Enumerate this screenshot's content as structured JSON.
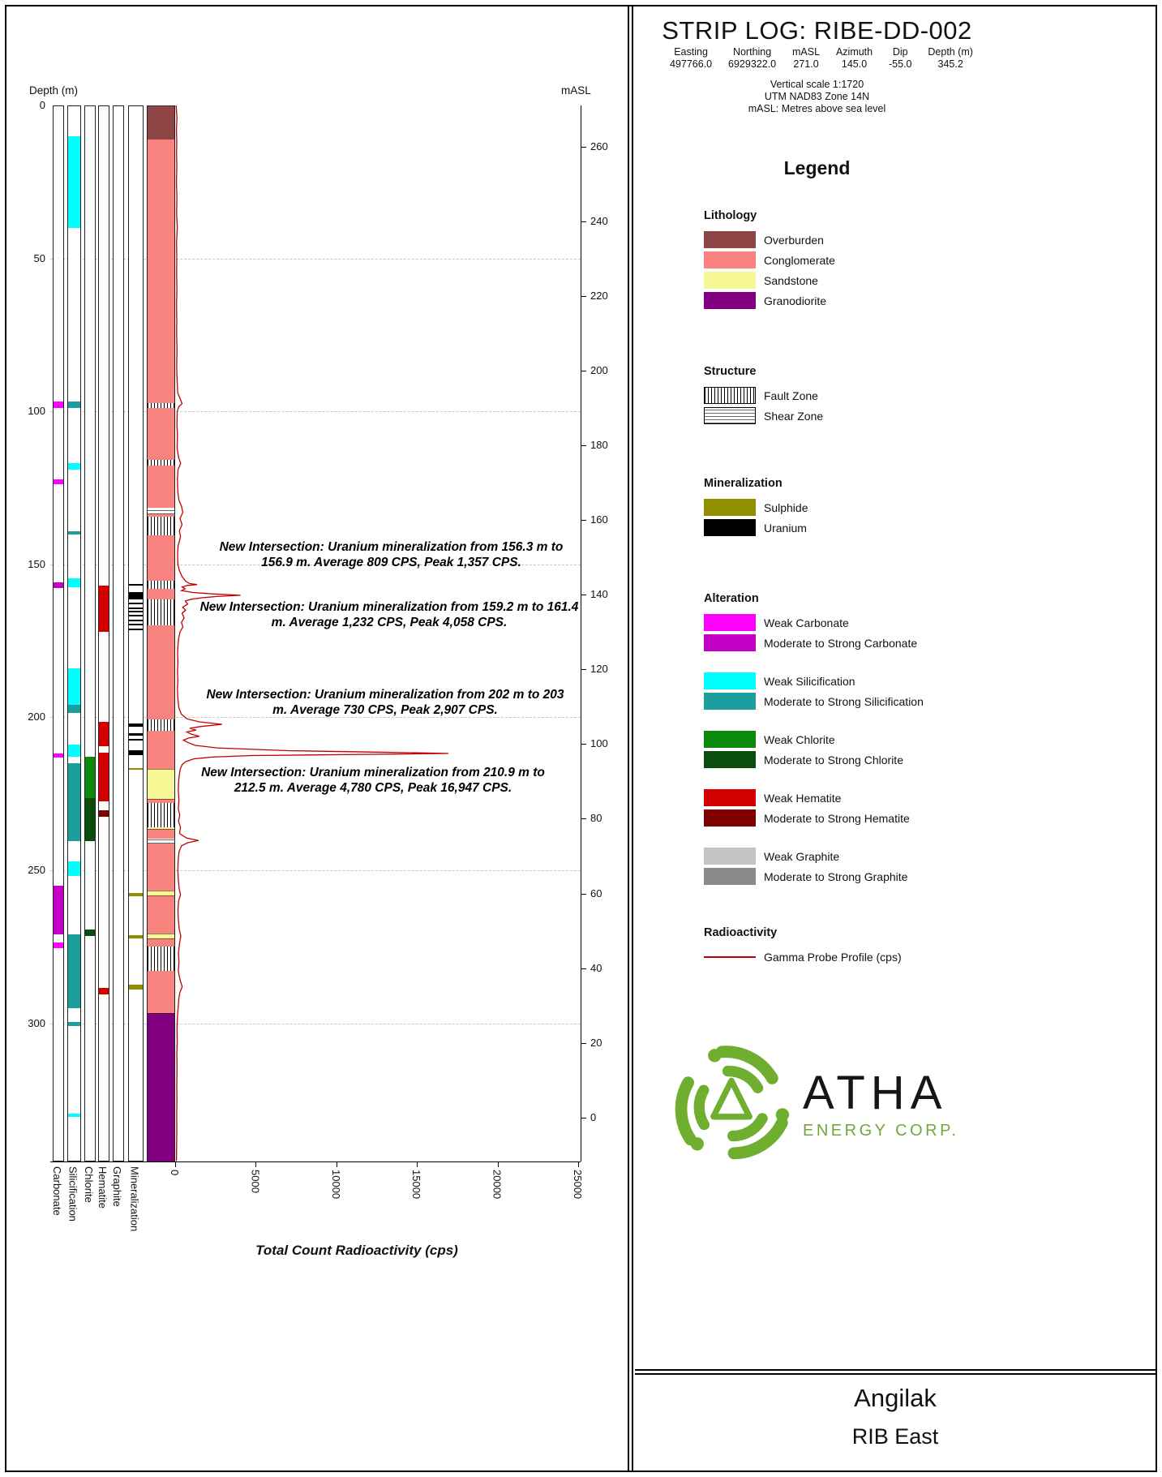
{
  "page": {
    "title": "STRIP LOG: RIBE-DD-002",
    "collar": {
      "labels": [
        "Easting",
        "Northing",
        "mASL",
        "Azimuth",
        "Dip",
        "Depth (m)"
      ],
      "values": [
        "497766.0",
        "6929322.0",
        "271.0",
        "145.0",
        "-55.0",
        "345.2"
      ]
    },
    "notes": [
      "Vertical scale 1:1720",
      "UTM NAD83 Zone 14N",
      "mASL: Metres above sea level"
    ],
    "footer": {
      "project": "Angilak",
      "area": "RIB East"
    },
    "logo": {
      "word": "ATHA",
      "subtitle": "ENERGY CORP."
    }
  },
  "colors": {
    "overburden": "#8d4545",
    "conglomerate": "#f9837e",
    "sandstone": "#f6f695",
    "granodiorite": "#800080",
    "sulphide": "#8f8f00",
    "uranium": "#000000",
    "carbonate_weak": "#ff00ff",
    "carbonate_strong": "#c400c4",
    "silicification_weak": "#00ffff",
    "silicification_strong": "#1a9e9e",
    "chlorite_weak": "#0c8a0c",
    "chlorite_strong": "#0b4d0b",
    "hematite_weak": "#d40000",
    "hematite_strong": "#7e0000",
    "graphite_weak": "#c4c4c4",
    "graphite_strong": "#8a8a8a",
    "gamma": "#c00000"
  },
  "legend": {
    "title": "Legend",
    "sections": [
      {
        "heading": "Lithology",
        "items": [
          {
            "label": "Overburden",
            "swatch": "fill",
            "color_key": "overburden"
          },
          {
            "label": "Conglomerate",
            "swatch": "fill",
            "color_key": "conglomerate"
          },
          {
            "label": "Sandstone",
            "swatch": "fill",
            "color_key": "sandstone"
          },
          {
            "label": "Granodiorite",
            "swatch": "fill",
            "color_key": "granodiorite"
          }
        ]
      },
      {
        "heading": "Structure",
        "items": [
          {
            "label": "Fault Zone",
            "swatch": "fault"
          },
          {
            "label": "Shear Zone",
            "swatch": "shear"
          }
        ]
      },
      {
        "heading": "Mineralization",
        "items": [
          {
            "label": "Sulphide",
            "swatch": "fill",
            "color_key": "sulphide"
          },
          {
            "label": "Uranium",
            "swatch": "fill",
            "color_key": "uranium"
          }
        ]
      },
      {
        "heading": "Alteration",
        "items": [
          {
            "label": "Weak Carbonate",
            "swatch": "fill",
            "color_key": "carbonate_weak"
          },
          {
            "label": "Moderate to Strong Carbonate",
            "swatch": "fill",
            "color_key": "carbonate_strong"
          },
          {
            "label": "Weak Silicification",
            "swatch": "fill",
            "color_key": "silicification_weak",
            "gap_before": true
          },
          {
            "label": "Moderate to Strong Silicification",
            "swatch": "fill",
            "color_key": "silicification_strong"
          },
          {
            "label": "Weak Chlorite",
            "swatch": "fill",
            "color_key": "chlorite_weak",
            "gap_before": true
          },
          {
            "label": "Moderate to Strong Chlorite",
            "swatch": "fill",
            "color_key": "chlorite_strong"
          },
          {
            "label": "Weak Hematite",
            "swatch": "fill",
            "color_key": "hematite_weak",
            "gap_before": true
          },
          {
            "label": "Moderate to Strong Hematite",
            "swatch": "fill",
            "color_key": "hematite_strong"
          },
          {
            "label": "Weak Graphite",
            "swatch": "fill",
            "color_key": "graphite_weak",
            "gap_before": true
          },
          {
            "label": "Moderate to Strong Graphite",
            "swatch": "fill",
            "color_key": "graphite_strong"
          }
        ]
      },
      {
        "heading": "Radioactivity",
        "items": [
          {
            "label": "Gamma Probe Profile (cps)",
            "swatch": "line",
            "color_key": "gamma"
          }
        ]
      }
    ]
  },
  "log": {
    "depth_axis": {
      "label": "Depth (m)",
      "ticks": [
        0,
        50,
        100,
        150,
        200,
        250,
        300
      ],
      "max_depth": 345.2
    },
    "masl_axis": {
      "label": "mASL",
      "ticks": [
        260,
        240,
        220,
        200,
        180,
        160,
        140,
        120,
        100,
        80,
        60,
        40,
        20,
        0
      ],
      "collar_masl": 271.0,
      "dip": -55.0
    },
    "gamma_axis": {
      "title": "Total Count Radioactivity (cps)",
      "ticks": [
        0,
        5000,
        10000,
        15000,
        20000,
        25000
      ],
      "max": 25000
    },
    "columns": [
      "Carbonate",
      "Silicification",
      "Chlorite",
      "Hematite",
      "Graphite",
      "Mineralization"
    ],
    "lithology": [
      {
        "from": 0,
        "to": 11,
        "unit": "overburden"
      },
      {
        "from": 11,
        "to": 216.8,
        "unit": "conglomerate"
      },
      {
        "from": 216.8,
        "to": 226.6,
        "unit": "sandstone"
      },
      {
        "from": 226.6,
        "to": 230.5,
        "unit": "conglomerate"
      },
      {
        "from": 230.5,
        "to": 236.4,
        "unit": "sandstone"
      },
      {
        "from": 236.4,
        "to": 256.6,
        "unit": "conglomerate"
      },
      {
        "from": 256.6,
        "to": 258.2,
        "unit": "sandstone"
      },
      {
        "from": 258.2,
        "to": 270.6,
        "unit": "conglomerate"
      },
      {
        "from": 270.6,
        "to": 272.2,
        "unit": "sandstone"
      },
      {
        "from": 272.2,
        "to": 296.6,
        "unit": "conglomerate"
      },
      {
        "from": 296.6,
        "to": 345.2,
        "unit": "granodiorite"
      }
    ],
    "structure": [
      {
        "from": 97.3,
        "to": 99,
        "type": "fault"
      },
      {
        "from": 115.8,
        "to": 117.8,
        "type": "fault"
      },
      {
        "from": 131.5,
        "to": 133.5,
        "type": "shear"
      },
      {
        "from": 134.5,
        "to": 140.5,
        "type": "fault"
      },
      {
        "from": 155.3,
        "to": 158,
        "type": "fault"
      },
      {
        "from": 161.5,
        "to": 170,
        "type": "fault"
      },
      {
        "from": 200.8,
        "to": 204.5,
        "type": "fault"
      },
      {
        "from": 228,
        "to": 236,
        "type": "fault"
      },
      {
        "from": 239.8,
        "to": 241.2,
        "type": "shear"
      },
      {
        "from": 275,
        "to": 283,
        "type": "fault"
      }
    ],
    "alteration": {
      "carbonate": [
        {
          "from": 96.8,
          "to": 98.8,
          "grade": "weak"
        },
        {
          "from": 122.3,
          "to": 123.8,
          "grade": "weak"
        },
        {
          "from": 155.8,
          "to": 157.8,
          "grade": "strong"
        },
        {
          "from": 211.8,
          "to": 213.2,
          "grade": "weak"
        },
        {
          "from": 255,
          "to": 271,
          "grade": "strong"
        },
        {
          "from": 273.5,
          "to": 275.5,
          "grade": "weak"
        }
      ],
      "silicification": [
        {
          "from": 10,
          "to": 40,
          "grade": "weak"
        },
        {
          "from": 96.8,
          "to": 98.8,
          "grade": "strong"
        },
        {
          "from": 117,
          "to": 119,
          "grade": "weak"
        },
        {
          "from": 139.3,
          "to": 140.3,
          "grade": "strong"
        },
        {
          "from": 154.5,
          "to": 157.5,
          "grade": "weak"
        },
        {
          "from": 184,
          "to": 196,
          "grade": "weak"
        },
        {
          "from": 196,
          "to": 198.5,
          "grade": "strong"
        },
        {
          "from": 208.8,
          "to": 213,
          "grade": "weak"
        },
        {
          "from": 215,
          "to": 240.5,
          "grade": "strong"
        },
        {
          "from": 247,
          "to": 252,
          "grade": "weak"
        },
        {
          "from": 271,
          "to": 295,
          "grade": "strong"
        },
        {
          "from": 299.5,
          "to": 300.8,
          "grade": "strong"
        },
        {
          "from": 329.5,
          "to": 330.5,
          "grade": "weak"
        }
      ],
      "chlorite": [
        {
          "from": 213,
          "to": 226.5,
          "grade": "weak"
        },
        {
          "from": 226.5,
          "to": 240.5,
          "grade": "strong"
        },
        {
          "from": 269.5,
          "to": 271.5,
          "grade": "strong"
        }
      ],
      "hematite": [
        {
          "from": 157,
          "to": 172,
          "grade": "weak"
        },
        {
          "from": 201.5,
          "to": 209.5,
          "grade": "weak"
        },
        {
          "from": 211.5,
          "to": 227.5,
          "grade": "weak"
        },
        {
          "from": 230.5,
          "to": 232.5,
          "grade": "strong"
        },
        {
          "from": 288.5,
          "to": 290.5,
          "grade": "weak"
        }
      ],
      "graphite": []
    },
    "mineralization": [
      {
        "from": 156.3,
        "to": 156.9,
        "type": "uranium"
      },
      {
        "from": 159.2,
        "to": 161.4,
        "type": "uranium"
      },
      {
        "from": 162.5,
        "to": 163,
        "type": "uranium"
      },
      {
        "from": 164,
        "to": 164.4,
        "type": "uranium"
      },
      {
        "from": 165.2,
        "to": 165.6,
        "type": "uranium"
      },
      {
        "from": 166.5,
        "to": 167,
        "type": "uranium"
      },
      {
        "from": 168,
        "to": 168.4,
        "type": "uranium"
      },
      {
        "from": 169.5,
        "to": 170,
        "type": "uranium"
      },
      {
        "from": 171,
        "to": 171.4,
        "type": "uranium"
      },
      {
        "from": 202,
        "to": 203,
        "type": "uranium"
      },
      {
        "from": 205.3,
        "to": 206,
        "type": "uranium"
      },
      {
        "from": 207,
        "to": 207.5,
        "type": "uranium"
      },
      {
        "from": 210.9,
        "to": 212.5,
        "type": "uranium"
      },
      {
        "from": 216.5,
        "to": 217.2,
        "type": "sulphide"
      },
      {
        "from": 257.5,
        "to": 258.5,
        "type": "sulphide"
      },
      {
        "from": 271.3,
        "to": 272.2,
        "type": "sulphide"
      },
      {
        "from": 287.5,
        "to": 289,
        "type": "sulphide"
      }
    ],
    "gamma_profile": [
      [
        0,
        60
      ],
      [
        4,
        110
      ],
      [
        8,
        80
      ],
      [
        12,
        100
      ],
      [
        16,
        85
      ],
      [
        20,
        105
      ],
      [
        25,
        80
      ],
      [
        30,
        110
      ],
      [
        35,
        90
      ],
      [
        40,
        130
      ],
      [
        45,
        85
      ],
      [
        50,
        100
      ],
      [
        55,
        90
      ],
      [
        60,
        110
      ],
      [
        65,
        85
      ],
      [
        70,
        100
      ],
      [
        75,
        90
      ],
      [
        80,
        115
      ],
      [
        85,
        95
      ],
      [
        90,
        120
      ],
      [
        94,
        160
      ],
      [
        96,
        320
      ],
      [
        97.5,
        430
      ],
      [
        98.5,
        220
      ],
      [
        100,
        130
      ],
      [
        104,
        110
      ],
      [
        108,
        140
      ],
      [
        112,
        120
      ],
      [
        115,
        210
      ],
      [
        117,
        340
      ],
      [
        119,
        180
      ],
      [
        122,
        140
      ],
      [
        126,
        160
      ],
      [
        129,
        230
      ],
      [
        131,
        390
      ],
      [
        133,
        480
      ],
      [
        135,
        300
      ],
      [
        137,
        430
      ],
      [
        139,
        260
      ],
      [
        141,
        330
      ],
      [
        144,
        180
      ],
      [
        147,
        150
      ],
      [
        150,
        170
      ],
      [
        152,
        260
      ],
      [
        154,
        430
      ],
      [
        155.5,
        650
      ],
      [
        156.3,
        900
      ],
      [
        156.6,
        1357
      ],
      [
        156.9,
        760
      ],
      [
        157.4,
        430
      ],
      [
        158,
        620
      ],
      [
        158.6,
        390
      ],
      [
        159.2,
        1100
      ],
      [
        159.7,
        2400
      ],
      [
        160.1,
        4058
      ],
      [
        160.5,
        2600
      ],
      [
        160.9,
        1700
      ],
      [
        161.4,
        1000
      ],
      [
        162,
        630
      ],
      [
        163,
        780
      ],
      [
        164,
        470
      ],
      [
        165,
        650
      ],
      [
        166,
        430
      ],
      [
        167.5,
        560
      ],
      [
        169,
        390
      ],
      [
        170.5,
        480
      ],
      [
        172,
        310
      ],
      [
        174,
        220
      ],
      [
        176,
        180
      ],
      [
        179,
        150
      ],
      [
        182,
        170
      ],
      [
        185,
        145
      ],
      [
        188,
        165
      ],
      [
        191,
        140
      ],
      [
        194,
        170
      ],
      [
        197,
        230
      ],
      [
        199,
        390
      ],
      [
        200.5,
        720
      ],
      [
        201.5,
        1500
      ],
      [
        202.3,
        2907
      ],
      [
        203,
        1600
      ],
      [
        203.6,
        900
      ],
      [
        204.2,
        1300
      ],
      [
        204.8,
        720
      ],
      [
        205.5,
        1000
      ],
      [
        206.2,
        1500
      ],
      [
        206.8,
        820
      ],
      [
        207.5,
        520
      ],
      [
        208.3,
        820
      ],
      [
        209.2,
        1250
      ],
      [
        210,
        2600
      ],
      [
        210.9,
        7000
      ],
      [
        211.4,
        12500
      ],
      [
        211.8,
        16947
      ],
      [
        212.2,
        10500
      ],
      [
        212.5,
        4780
      ],
      [
        213,
        2300
      ],
      [
        213.6,
        1150
      ],
      [
        214.5,
        660
      ],
      [
        215.5,
        430
      ],
      [
        217,
        310
      ],
      [
        219,
        250
      ],
      [
        221,
        215
      ],
      [
        224,
        195
      ],
      [
        227,
        235
      ],
      [
        230,
        195
      ],
      [
        232,
        285
      ],
      [
        234,
        205
      ],
      [
        236,
        330
      ],
      [
        238,
        270
      ],
      [
        239.5,
        720
      ],
      [
        240.3,
        1450
      ],
      [
        241,
        780
      ],
      [
        242,
        390
      ],
      [
        244,
        235
      ],
      [
        247,
        185
      ],
      [
        250,
        165
      ],
      [
        253,
        195
      ],
      [
        256,
        245
      ],
      [
        258,
        330
      ],
      [
        260,
        215
      ],
      [
        263,
        175
      ],
      [
        266,
        195
      ],
      [
        269,
        245
      ],
      [
        271.5,
        350
      ],
      [
        274,
        265
      ],
      [
        277,
        205
      ],
      [
        280,
        235
      ],
      [
        283,
        195
      ],
      [
        286,
        310
      ],
      [
        288,
        440
      ],
      [
        290,
        290
      ],
      [
        292,
        225
      ],
      [
        295,
        185
      ],
      [
        298,
        135
      ],
      [
        302,
        115
      ],
      [
        306,
        125
      ],
      [
        310,
        105
      ],
      [
        315,
        118
      ],
      [
        320,
        102
      ],
      [
        325,
        112
      ],
      [
        330,
        98
      ],
      [
        335,
        108
      ],
      [
        340,
        92
      ],
      [
        345,
        78
      ]
    ],
    "annotations": [
      {
        "text": "New Intersection: Uranium mineralization from 156.3 m to 156.9 m. Average 809 CPS, Peak 1,357 CPS."
      },
      {
        "text": "New Intersection: Uranium mineralization from 159.2 m to 161.4 m. Average 1,232 CPS, Peak 4,058 CPS."
      },
      {
        "text": "New Intersection: Uranium mineralization from 202 m to 203 m. Average 730 CPS, Peak 2,907 CPS."
      },
      {
        "text": "New Intersection: Uranium mineralization from 210.9 m to 212.5 m. Average 4,780 CPS, Peak 16,947 CPS."
      }
    ]
  }
}
